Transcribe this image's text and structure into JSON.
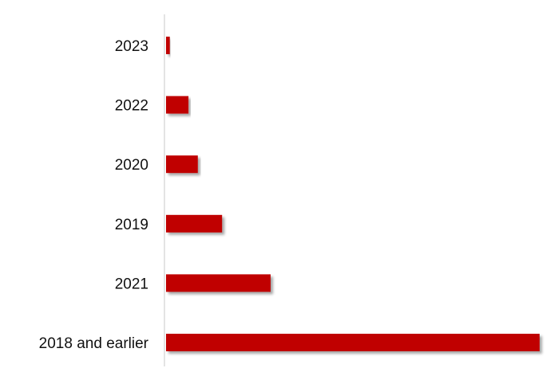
{
  "chart_data": {
    "type": "bar",
    "orientation": "horizontal",
    "categories": [
      "2023",
      "2022",
      "2020",
      "2019",
      "2021",
      "2018 and earlier"
    ],
    "values": [
      1,
      6,
      8.5,
      15,
      28,
      100
    ],
    "title": "",
    "xlabel": "",
    "ylabel": "",
    "xlim": [
      0,
      100
    ],
    "grid": false,
    "legend": "none",
    "bar_color": "#C00000",
    "axis_color": "#C8C8C8"
  }
}
